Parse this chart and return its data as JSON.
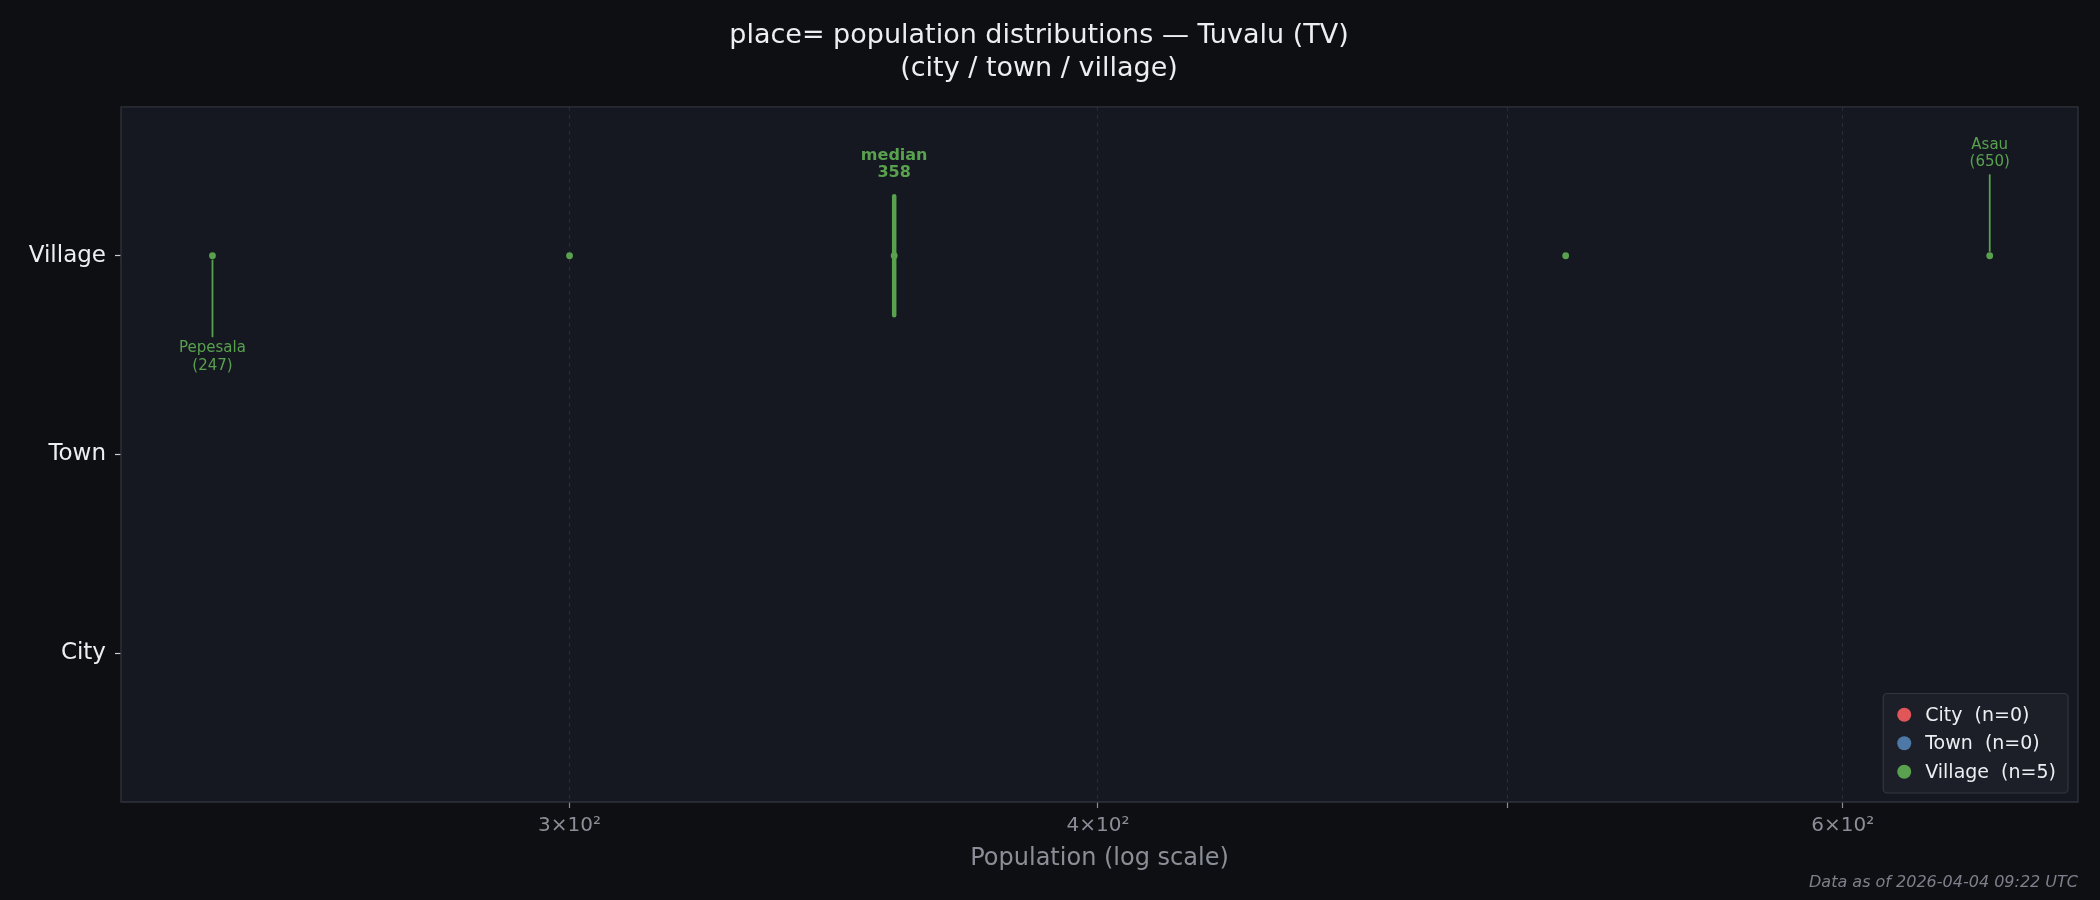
{
  "chart_data": {
    "type": "scatter",
    "title": "place= population distributions — Tuvalu (TV)\n(city / town / village)",
    "xlabel": "Population (log scale)",
    "orientation": "horizontal",
    "categories": [
      "Village",
      "Town",
      "City"
    ],
    "series": [
      {
        "name": "City  (n=0)",
        "color": "#e15759",
        "values": [
          null,
          null,
          null
        ]
      },
      {
        "name": "Town  (n=0)",
        "color": "#4e79a7",
        "values": [
          null,
          null,
          null
        ]
      },
      {
        "name": "Village  (n=5)",
        "color": "#59a14f",
        "x": [
          "Village",
          "Village",
          "Village",
          "Village",
          "Village"
        ],
        "values": [
          247,
          300,
          358,
          516,
          650
        ]
      }
    ],
    "xlim": [
      235,
      682
    ],
    "xticks": [
      {
        "value": 300,
        "label": "3×10²"
      },
      {
        "value": 400,
        "label": "4×10²"
      },
      {
        "value": 500,
        "label": null
      },
      {
        "value": 600,
        "label": "6×10²"
      }
    ],
    "log": "x",
    "grid": "x",
    "legend": "bottom right",
    "marker": "circle",
    "ref_lines": [
      {
        "axis": "x",
        "value": 358,
        "label": "median\n358",
        "color": "#59a14f"
      }
    ],
    "annotations": [
      {
        "text": "Pepesala\n(247)",
        "x": 247,
        "y": "Village"
      },
      {
        "text": "Asau\n(650)",
        "x": 650,
        "y": "Village"
      },
      "Data as of 2026-04-04 09:22 UTC"
    ]
  }
}
